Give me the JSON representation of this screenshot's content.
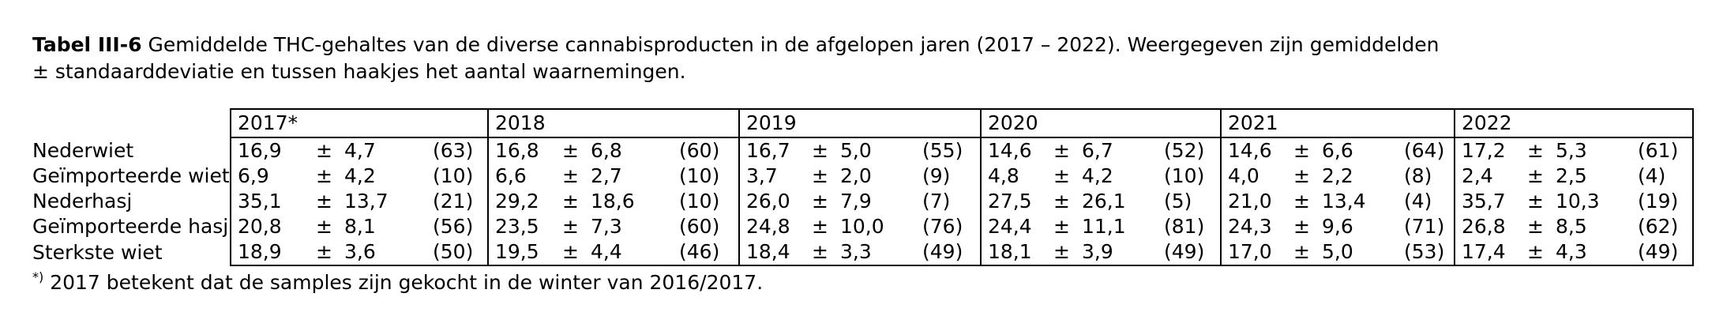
{
  "caption": {
    "label": "Tabel III-6",
    "text": " Gemiddelde THC-gehaltes van de diverse cannabisproducten in de afgelopen jaren (2017 – 2022). Weergegeven zijn gemiddelden",
    "line2": "± standaarddeviatie en tussen haakjes het aantal waarnemingen."
  },
  "table": {
    "years": [
      "2017*",
      "2018",
      "2019",
      "2020",
      "2021",
      "2022"
    ],
    "pm_symbol": "±",
    "rows": [
      {
        "label": "Nederwiet",
        "cells": [
          {
            "mean": "16,9",
            "sd": "4,7",
            "n": "(63)"
          },
          {
            "mean": "16,8",
            "sd": "6,8",
            "n": "(60)"
          },
          {
            "mean": "16,7",
            "sd": "5,0",
            "n": "(55)"
          },
          {
            "mean": "14,6",
            "sd": "6,7",
            "n": "(52)"
          },
          {
            "mean": "14,6",
            "sd": "6,6",
            "n": "(64)"
          },
          {
            "mean": "17,2",
            "sd": "5,3",
            "n": "(61)"
          }
        ]
      },
      {
        "label": "Geïmporteerde wiet",
        "cells": [
          {
            "mean": "6,9",
            "sd": "4,2",
            "n": "(10)"
          },
          {
            "mean": "6,6",
            "sd": "2,7",
            "n": "(10)"
          },
          {
            "mean": "3,7",
            "sd": "2,0",
            "n": "(9)"
          },
          {
            "mean": "4,8",
            "sd": "4,2",
            "n": "(10)"
          },
          {
            "mean": "4,0",
            "sd": "2,2",
            "n": "(8)"
          },
          {
            "mean": "2,4",
            "sd": "2,5",
            "n": "(4)"
          }
        ]
      },
      {
        "label": "Nederhasj",
        "cells": [
          {
            "mean": "35,1",
            "sd": "13,7",
            "n": "(21)"
          },
          {
            "mean": "29,2",
            "sd": "18,6",
            "n": "(10)"
          },
          {
            "mean": "26,0",
            "sd": "7,9",
            "n": "(7)"
          },
          {
            "mean": "27,5",
            "sd": "26,1",
            "n": "(5)"
          },
          {
            "mean": "21,0",
            "sd": "13,4",
            "n": "(4)"
          },
          {
            "mean": "35,7",
            "sd": "10,3",
            "n": "(19)"
          }
        ]
      },
      {
        "label": "Geïmporteerde hasj",
        "cells": [
          {
            "mean": "20,8",
            "sd": "8,1",
            "n": "(56)"
          },
          {
            "mean": "23,5",
            "sd": "7,3",
            "n": "(60)"
          },
          {
            "mean": "24,8",
            "sd": "10,0",
            "n": "(76)"
          },
          {
            "mean": "24,4",
            "sd": "11,1",
            "n": "(81)"
          },
          {
            "mean": "24,3",
            "sd": "9,6",
            "n": "(71)"
          },
          {
            "mean": "26,8",
            "sd": "8,5",
            "n": "(62)"
          }
        ]
      },
      {
        "label": "Sterkste wiet",
        "cells": [
          {
            "mean": "18,9",
            "sd": "3,6",
            "n": "(50)"
          },
          {
            "mean": "19,5",
            "sd": "4,4",
            "n": "(46)"
          },
          {
            "mean": "18,4",
            "sd": "3,3",
            "n": "(49)"
          },
          {
            "mean": "18,1",
            "sd": "3,9",
            "n": "(49)"
          },
          {
            "mean": "17,0",
            "sd": "5,0",
            "n": "(53)"
          },
          {
            "mean": "17,4",
            "sd": "4,3",
            "n": "(49)"
          }
        ]
      }
    ]
  },
  "footnote": {
    "marker": "*)",
    "text": " 2017 betekent dat de samples zijn gekocht in de winter van 2016/2017."
  }
}
